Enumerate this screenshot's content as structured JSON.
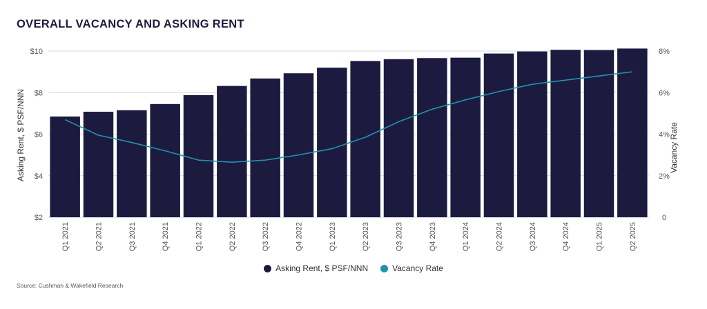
{
  "title": "OVERALL VACANCY AND ASKING RENT",
  "source": "Source: Cushman & Wakefield Research",
  "colors": {
    "bar": "#1c1b3f",
    "line": "#1f93ad",
    "grid": "#d9d9d9"
  },
  "chart_data": {
    "type": "bar",
    "categories": [
      "Q1 2021",
      "Q2 2021",
      "Q3 2021",
      "Q4 2021",
      "Q1 2022",
      "Q2 2022",
      "Q3 2022",
      "Q4 2022",
      "Q1 2023",
      "Q2 2023",
      "Q3 2023",
      "Q4 2023",
      "Q1 2024",
      "Q2 2024",
      "Q3 2024",
      "Q4 2024",
      "Q1 2025",
      "Q2 2025"
    ],
    "series": [
      {
        "name": "Asking Rent, $ PSF/NNN",
        "type": "bar",
        "axis": "left",
        "values": [
          6.85,
          7.08,
          7.15,
          7.45,
          7.88,
          8.32,
          8.68,
          8.93,
          9.2,
          9.52,
          9.61,
          9.66,
          9.68,
          9.88,
          9.98,
          10.06,
          10.05,
          10.12
        ]
      },
      {
        "name": "Vacancy Rate",
        "type": "line",
        "axis": "right",
        "values": [
          4.7,
          3.95,
          3.6,
          3.2,
          2.75,
          2.65,
          2.75,
          3.0,
          3.3,
          3.85,
          4.6,
          5.2,
          5.65,
          6.05,
          6.4,
          6.6,
          6.8,
          7.0
        ]
      }
    ],
    "y_left": {
      "label": "Asking Rent, $ PSF/NNN",
      "range": [
        2,
        10
      ],
      "ticks": [
        "$2",
        "$4",
        "$6",
        "$8",
        "$10"
      ]
    },
    "y_right": {
      "label": "Vacancy Rate",
      "range": [
        0,
        8
      ],
      "ticks": [
        "0",
        "2%",
        "4%",
        "6%",
        "8%"
      ]
    },
    "grid": true,
    "legend_position": "bottom"
  }
}
